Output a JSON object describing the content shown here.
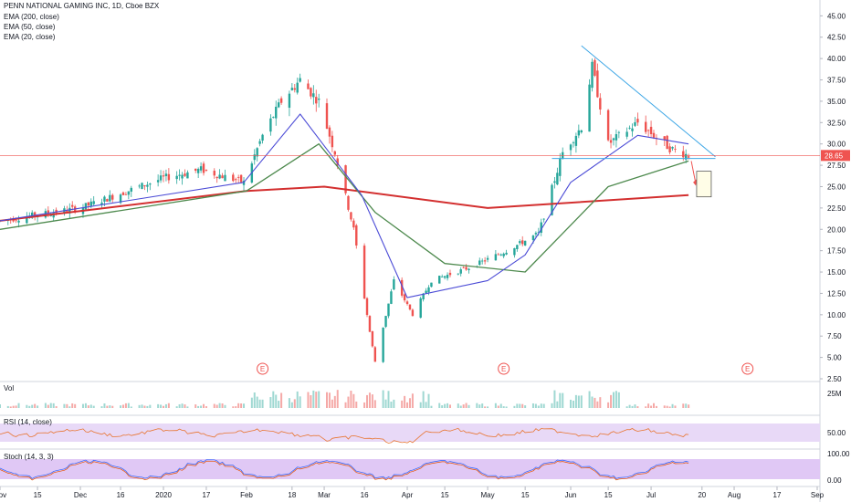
{
  "header": {
    "symbol_line": "PENN NATIONAL GAMING INC, 1D, Cboe BZX",
    "indicators": [
      "EMA (200, close)",
      "EMA (50, close)",
      "EMA (20, close)"
    ]
  },
  "panes": {
    "volume_label": "Vol",
    "volume_tick": "25M",
    "rsi_label": "RSI (14, close)",
    "rsi_tick": "50.00",
    "stoch_label": "Stoch (14, 3, 3)",
    "stoch_ticks": [
      "100.00",
      "0.00"
    ]
  },
  "price_axis_labels": [
    "45.00",
    "42.50",
    "40.00",
    "37.50",
    "35.00",
    "32.50",
    "30.00",
    "27.50",
    "25.00",
    "22.50",
    "20.00",
    "17.50",
    "15.00",
    "12.50",
    "10.00",
    "7.50",
    "5.00",
    "2.50"
  ],
  "last_price": "28.65",
  "x_axis_labels": [
    "Nov",
    "15",
    "Dec",
    "16",
    "2020",
    "17",
    "Feb",
    "18",
    "Mar",
    "16",
    "Apr",
    "15",
    "May",
    "15",
    "Jun",
    "15",
    "Jul",
    "20",
    "Aug",
    "17",
    "Sep"
  ],
  "earnings_marker": "E",
  "colors": {
    "up": "#26a69a",
    "down": "#ef5350",
    "ema200": "#d32f2f",
    "ema50": "#4e8a4e",
    "ema20": "#4b4bd6",
    "trendline": "#3fa7e6",
    "rsi_band": "#e8d9f7",
    "stoch_band": "#e0c8f5",
    "price_line": "#ef5350"
  },
  "chart_data": {
    "type": "candlestick",
    "ylim": [
      2.5,
      46
    ],
    "x_range": [
      "2019-11-01",
      "2020-09-01"
    ],
    "price_anchors": [
      {
        "date": "2019-11-01",
        "price": 21.0
      },
      {
        "date": "2019-12-01",
        "price": 22.5
      },
      {
        "date": "2020-01-01",
        "price": 26.0
      },
      {
        "date": "2020-01-15",
        "price": 27.0
      },
      {
        "date": "2020-01-31",
        "price": 25.5
      },
      {
        "date": "2020-02-07",
        "price": 31.0
      },
      {
        "date": "2020-02-14",
        "price": 35.0
      },
      {
        "date": "2020-02-21",
        "price": 37.5
      },
      {
        "date": "2020-02-28",
        "price": 35.0
      },
      {
        "date": "2020-03-05",
        "price": 29.0
      },
      {
        "date": "2020-03-12",
        "price": 20.0
      },
      {
        "date": "2020-03-18",
        "price": 8.0
      },
      {
        "date": "2020-03-20",
        "price": 4.5
      },
      {
        "date": "2020-03-27",
        "price": 14.0
      },
      {
        "date": "2020-04-03",
        "price": 10.0
      },
      {
        "date": "2020-04-10",
        "price": 14.0
      },
      {
        "date": "2020-04-24",
        "price": 15.5
      },
      {
        "date": "2020-05-08",
        "price": 17.5
      },
      {
        "date": "2020-05-20",
        "price": 19.5
      },
      {
        "date": "2020-05-29",
        "price": 29.0
      },
      {
        "date": "2020-06-05",
        "price": 32.0
      },
      {
        "date": "2020-06-09",
        "price": 39.0
      },
      {
        "date": "2020-06-15",
        "price": 30.0
      },
      {
        "date": "2020-06-26",
        "price": 32.5
      },
      {
        "date": "2020-07-08",
        "price": 29.5
      },
      {
        "date": "2020-07-15",
        "price": 28.65
      }
    ],
    "ema200": [
      [
        "2019-11-01",
        21.0
      ],
      [
        "2020-02-01",
        24.5
      ],
      [
        "2020-03-01",
        25.0
      ],
      [
        "2020-05-01",
        22.5
      ],
      [
        "2020-07-15",
        24.0
      ]
    ],
    "ema50": [
      [
        "2019-11-01",
        20.0
      ],
      [
        "2020-02-01",
        24.5
      ],
      [
        "2020-02-28",
        30.0
      ],
      [
        "2020-03-20",
        22.0
      ],
      [
        "2020-04-15",
        16.0
      ],
      [
        "2020-05-15",
        15.0
      ],
      [
        "2020-06-15",
        25.0
      ],
      [
        "2020-07-15",
        28.0
      ]
    ],
    "ema20": [
      [
        "2019-11-01",
        21.0
      ],
      [
        "2020-01-31",
        25.5
      ],
      [
        "2020-02-21",
        33.5
      ],
      [
        "2020-03-15",
        24.0
      ],
      [
        "2020-04-01",
        12.0
      ],
      [
        "2020-05-01",
        14.0
      ],
      [
        "2020-05-15",
        17.0
      ],
      [
        "2020-06-01",
        25.5
      ],
      [
        "2020-06-26",
        31.0
      ],
      [
        "2020-07-15",
        30.0
      ]
    ],
    "trendlines": [
      {
        "from": [
          "2020-06-05",
          41.5
        ],
        "to": [
          "2020-07-25",
          28.5
        ]
      },
      {
        "from": [
          "2020-05-25",
          28.3
        ],
        "to": [
          "2020-07-25",
          28.3
        ]
      }
    ],
    "earnings_dates": [
      "2020-02-07",
      "2020-05-07",
      "2020-08-06"
    ]
  }
}
